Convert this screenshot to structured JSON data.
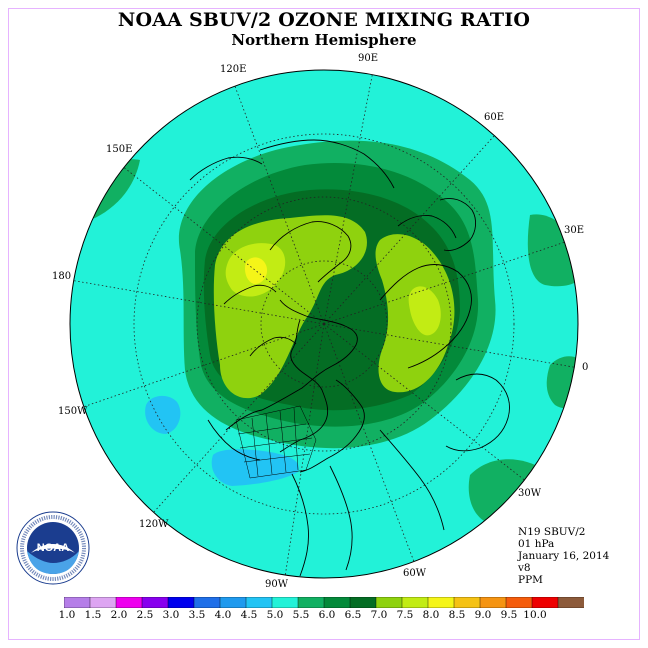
{
  "title": "NOAA SBUV/2 OZONE MIXING RATIO",
  "subtitle": "Northern Hemisphere",
  "info": {
    "satellite": "N19 SBUV/2",
    "level": "01 hPa",
    "date": "January 16, 2014",
    "version": "v8",
    "units": "PPM"
  },
  "longitude_labels": [
    "90E",
    "60E",
    "30E",
    "0",
    "30W",
    "60W",
    "90W",
    "120W",
    "150W",
    "180",
    "150E",
    "120E"
  ],
  "logo": {
    "text": "NOAA",
    "ring_text": "NATIONAL OCEANIC AND ATMOSPHERIC ADMINISTRATION · U.S. DEPARTMENT OF COMMERCE"
  },
  "colorbar": {
    "tick_labels": [
      "1.0",
      "1.5",
      "2.0",
      "2.5",
      "3.0",
      "3.5",
      "4.0",
      "4.5",
      "5.0",
      "5.5",
      "6.0",
      "6.5",
      "7.0",
      "7.5",
      "8.0",
      "8.5",
      "9.0",
      "9.5",
      "10.0"
    ],
    "colors": [
      "#b57ee8",
      "#dda5f2",
      "#ee00ee",
      "#8800ee",
      "#0000ee",
      "#1f6fe8",
      "#1f9aee",
      "#22c4f4",
      "#22f2d8",
      "#11b062",
      "#038a3a",
      "#046d24",
      "#8fd20e",
      "#c2ec14",
      "#f5f518",
      "#f5c214",
      "#f59412",
      "#f55c0c",
      "#ee0000",
      "#8c5a3a"
    ]
  },
  "map_colors": {
    "level_4_0_4_5": "#22c4f4",
    "level_4_5_5_0": "#22f2d8",
    "level_5_0_5_5": "#11b062",
    "level_5_5_6_0": "#038a3a",
    "level_6_0_6_5": "#046d24",
    "level_6_5_7_0": "#8fd20e",
    "level_7_0_7_5": "#c2ec14",
    "level_7_5_8_0": "#f5f518"
  }
}
